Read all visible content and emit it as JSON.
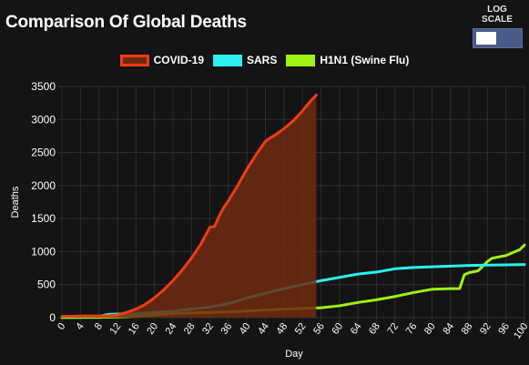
{
  "header": {
    "title": "Comparison Of Global Deaths",
    "log_scale_label": "LOG SCALE",
    "log_scale_on": false
  },
  "colors": {
    "covid": "#f03c14",
    "covid_fill": "#6e2a10",
    "sars": "#2cf0f0",
    "h1n1": "#a0f014",
    "grid": "#2e2e2e",
    "text": "#ffffff"
  },
  "chart_data": {
    "type": "line",
    "title": "Comparison Of Global Deaths",
    "xlabel": "Day",
    "ylabel": "Deaths",
    "xlim": [
      0,
      100
    ],
    "ylim": [
      0,
      3500
    ],
    "x_ticks": [
      0,
      4,
      8,
      12,
      16,
      20,
      24,
      28,
      32,
      36,
      40,
      44,
      48,
      52,
      56,
      60,
      64,
      68,
      72,
      76,
      80,
      84,
      88,
      92,
      96,
      100
    ],
    "y_ticks": [
      0,
      500,
      1000,
      1500,
      2000,
      2500,
      3000,
      3500
    ],
    "grid": true,
    "legend_position": "top-center",
    "series": [
      {
        "name": "COVID-19",
        "filled": true,
        "x": [
          0,
          4,
          8,
          10,
          12,
          14,
          16,
          18,
          20,
          22,
          24,
          26,
          28,
          30,
          32,
          33,
          34,
          35,
          36,
          38,
          40,
          42,
          44,
          45,
          46,
          48,
          50,
          52,
          54,
          55
        ],
        "y": [
          17,
          25,
          25,
          30,
          40,
          80,
          130,
          200,
          300,
          420,
          560,
          720,
          900,
          1110,
          1370,
          1380,
          1540,
          1670,
          1770,
          2000,
          2250,
          2470,
          2670,
          2720,
          2760,
          2860,
          2980,
          3130,
          3300,
          3370
        ]
      },
      {
        "name": "SARS",
        "filled": false,
        "x": [
          0,
          8,
          10,
          12,
          16,
          20,
          24,
          28,
          32,
          36,
          40,
          44,
          48,
          52,
          56,
          60,
          64,
          68,
          72,
          76,
          80,
          84,
          88,
          92,
          96,
          100
        ],
        "y": [
          15,
          20,
          50,
          55,
          60,
          80,
          100,
          130,
          160,
          210,
          300,
          370,
          440,
          500,
          560,
          610,
          660,
          690,
          740,
          760,
          770,
          780,
          790,
          795,
          800,
          805
        ]
      },
      {
        "name": "H1N1 (Swine Flu)",
        "filled": false,
        "x": [
          0,
          8,
          12,
          16,
          20,
          24,
          28,
          32,
          36,
          40,
          44,
          48,
          52,
          56,
          60,
          64,
          68,
          72,
          76,
          80,
          84,
          86,
          87,
          88,
          90,
          91,
          92,
          93,
          96,
          98,
          99,
          100
        ],
        "y": [
          2,
          5,
          10,
          20,
          40,
          60,
          70,
          80,
          90,
          100,
          115,
          130,
          140,
          150,
          180,
          230,
          270,
          320,
          380,
          430,
          440,
          440,
          650,
          680,
          710,
          780,
          850,
          900,
          940,
          1000,
          1030,
          1100
        ]
      }
    ]
  }
}
